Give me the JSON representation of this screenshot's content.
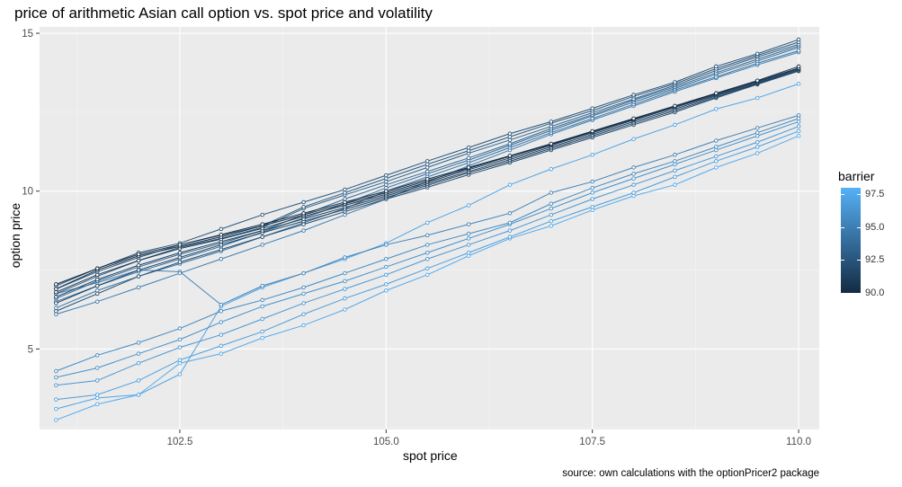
{
  "chart_data": {
    "type": "line",
    "title": "price of arithmetic Asian call option vs. spot price and volatility",
    "xlabel": "spot price",
    "ylabel": "option price",
    "caption": "source: own calculations with the optionPricer2 package",
    "xlim": [
      100.8,
      110.25
    ],
    "ylim": [
      2.45,
      15.2
    ],
    "x_ticks": [
      102.5,
      105.0,
      107.5,
      110.0
    ],
    "x_tick_labels": [
      "102.5",
      "105.0",
      "107.5",
      "110.0"
    ],
    "y_ticks": [
      5,
      10,
      15
    ],
    "y_tick_labels": [
      "5",
      "10",
      "15"
    ],
    "grid": true,
    "legend": {
      "title": "barrier",
      "position": "right",
      "type": "colorbar",
      "min": 90.0,
      "max": 98.0,
      "ticks": [
        90.0,
        92.5,
        95.0,
        97.5
      ],
      "tick_labels": [
        "90.0",
        "92.5",
        "95.0",
        "97.5"
      ],
      "low_color": "#132B43",
      "high_color": "#56B1F7"
    },
    "x": [
      101.0,
      101.5,
      102.0,
      102.5,
      103.0,
      103.5,
      104.0,
      104.5,
      105.0,
      105.5,
      106.0,
      106.5,
      107.0,
      107.5,
      108.0,
      108.5,
      109.0,
      109.5,
      110.0
    ],
    "series": [
      {
        "barrier": 90.0,
        "values": [
          7.05,
          7.55,
          8.0,
          8.3,
          8.62,
          8.95,
          9.3,
          9.65,
          10.0,
          10.38,
          10.75,
          11.12,
          11.5,
          11.9,
          12.3,
          12.7,
          13.1,
          13.5,
          13.95
        ]
      },
      {
        "barrier": 90.4,
        "values": [
          6.9,
          7.5,
          7.95,
          8.25,
          8.55,
          8.9,
          9.25,
          9.6,
          9.95,
          10.33,
          10.72,
          11.1,
          11.48,
          11.88,
          12.28,
          12.68,
          13.08,
          13.48,
          13.9
        ]
      },
      {
        "barrier": 90.8,
        "values": [
          6.8,
          7.35,
          7.8,
          8.18,
          8.48,
          8.82,
          9.2,
          9.55,
          9.9,
          10.28,
          10.68,
          11.05,
          11.45,
          11.85,
          12.25,
          12.65,
          13.05,
          13.45,
          13.88
        ]
      },
      {
        "barrier": 91.2,
        "values": [
          6.65,
          7.2,
          7.65,
          8.05,
          8.4,
          8.75,
          9.12,
          9.48,
          9.85,
          10.23,
          10.62,
          11.0,
          11.4,
          11.8,
          12.2,
          12.6,
          13.02,
          13.42,
          13.85
        ]
      },
      {
        "barrier": 91.6,
        "values": [
          6.45,
          7.0,
          7.5,
          7.9,
          8.3,
          8.68,
          9.05,
          9.42,
          9.8,
          10.18,
          10.58,
          10.95,
          11.35,
          11.75,
          12.15,
          12.55,
          12.98,
          13.4,
          13.82
        ]
      },
      {
        "barrier": 92.0,
        "values": [
          6.2,
          6.75,
          7.3,
          7.75,
          8.15,
          8.55,
          8.95,
          9.35,
          9.75,
          10.12,
          10.52,
          10.9,
          11.3,
          11.7,
          12.1,
          12.5,
          12.95,
          13.38,
          13.8
        ]
      },
      {
        "barrier": 92.4,
        "values": [
          7.0,
          7.55,
          8.05,
          8.35,
          8.8,
          9.25,
          9.65,
          10.05,
          10.5,
          10.95,
          11.38,
          11.82,
          12.2,
          12.62,
          13.05,
          13.45,
          13.95,
          14.35,
          14.8
        ]
      },
      {
        "barrier": 92.8,
        "values": [
          6.9,
          7.45,
          7.9,
          8.3,
          8.6,
          8.9,
          9.5,
          9.95,
          10.4,
          10.85,
          11.28,
          11.72,
          12.15,
          12.55,
          13.0,
          13.4,
          13.88,
          14.3,
          14.72
        ]
      },
      {
        "barrier": 93.2,
        "values": [
          6.75,
          7.3,
          7.8,
          8.22,
          8.5,
          8.85,
          9.45,
          9.88,
          10.3,
          10.75,
          11.2,
          11.62,
          12.05,
          12.48,
          12.92,
          13.35,
          13.82,
          14.25,
          14.65
        ]
      },
      {
        "barrier": 93.6,
        "values": [
          6.6,
          7.15,
          7.6,
          8.0,
          8.35,
          8.75,
          9.25,
          9.75,
          10.2,
          10.62,
          11.05,
          11.5,
          11.98,
          12.42,
          12.88,
          13.3,
          13.75,
          14.18,
          14.6
        ]
      },
      {
        "barrier": 94.0,
        "values": [
          6.5,
          7.0,
          7.45,
          7.85,
          8.25,
          8.7,
          9.15,
          9.6,
          10.1,
          10.55,
          10.98,
          11.45,
          11.92,
          12.38,
          12.82,
          13.25,
          13.7,
          14.12,
          14.55
        ]
      },
      {
        "barrier": 94.4,
        "values": [
          6.3,
          6.85,
          7.3,
          7.7,
          8.1,
          8.55,
          9.0,
          9.45,
          10.0,
          10.45,
          10.9,
          11.38,
          11.85,
          12.3,
          12.75,
          13.2,
          13.62,
          14.05,
          14.45
        ]
      },
      {
        "barrier": 94.8,
        "values": [
          6.1,
          6.5,
          6.95,
          7.4,
          7.85,
          8.3,
          8.75,
          9.25,
          9.75,
          10.3,
          10.8,
          11.3,
          11.8,
          12.25,
          12.7,
          13.15,
          13.58,
          14.0,
          14.4
        ]
      },
      {
        "barrier": 95.2,
        "values": [
          6.75,
          7.1,
          7.5,
          7.45,
          6.4,
          7.0,
          7.4,
          7.9,
          8.3,
          8.6,
          8.95,
          9.3,
          9.95,
          10.3,
          10.75,
          11.15,
          11.6,
          12.0,
          12.4
        ]
      },
      {
        "barrier": 95.6,
        "values": [
          4.3,
          4.8,
          5.2,
          5.65,
          6.2,
          6.55,
          6.95,
          7.4,
          7.85,
          8.3,
          8.65,
          9.0,
          9.6,
          10.1,
          10.55,
          10.95,
          11.4,
          11.85,
          12.3
        ]
      },
      {
        "barrier": 96.0,
        "values": [
          4.1,
          4.4,
          4.85,
          5.3,
          5.85,
          6.35,
          6.75,
          7.15,
          7.6,
          8.05,
          8.5,
          8.95,
          9.45,
          9.95,
          10.4,
          10.85,
          11.3,
          11.75,
          12.2
        ]
      },
      {
        "barrier": 96.4,
        "values": [
          3.85,
          4.0,
          4.55,
          5.05,
          5.45,
          5.95,
          6.45,
          6.9,
          7.35,
          7.85,
          8.3,
          8.75,
          9.25,
          9.75,
          10.2,
          10.65,
          11.1,
          11.55,
          12.05
        ]
      },
      {
        "barrier": 96.8,
        "values": [
          3.4,
          3.55,
          4.0,
          4.65,
          5.1,
          5.55,
          6.1,
          6.6,
          7.05,
          7.55,
          8.05,
          8.55,
          9.05,
          9.5,
          9.95,
          10.45,
          10.95,
          11.4,
          11.9
        ]
      },
      {
        "barrier": 97.2,
        "values": [
          3.1,
          3.45,
          3.55,
          4.2,
          6.35,
          6.95,
          7.4,
          7.85,
          8.35,
          9.0,
          9.55,
          10.2,
          10.7,
          11.15,
          11.65,
          12.1,
          12.6,
          12.95,
          13.4
        ]
      },
      {
        "barrier": 97.6,
        "values": [
          2.75,
          3.25,
          3.55,
          4.55,
          4.85,
          5.35,
          5.75,
          6.25,
          6.85,
          7.35,
          7.95,
          8.5,
          8.9,
          9.4,
          9.85,
          10.2,
          10.75,
          11.2,
          11.75
        ]
      }
    ]
  }
}
